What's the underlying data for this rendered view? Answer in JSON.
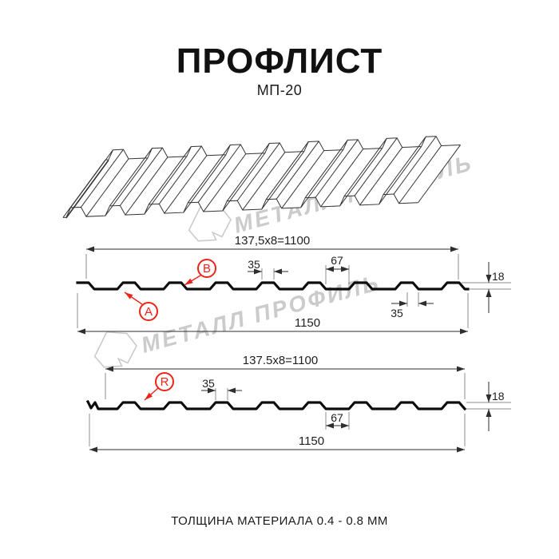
{
  "title": "ПРОФЛИСТ",
  "subtitle": "МП-20",
  "footer": "ТОЛЩИНА МАТЕРИАЛА 0.4 - 0.8 ММ",
  "watermark": {
    "text": "МЕТАЛЛ ПРОФИЛЬ",
    "color": "#cbcbcb"
  },
  "colors": {
    "accent_red": "#ee2219",
    "drawing_line": "#0d0d0d"
  },
  "section1": {
    "working_width": "137,5x8=1100",
    "total_width": "1150",
    "crest_width": "35",
    "valley_width": "67",
    "profile_height": "18",
    "bottom_width": "35",
    "label_a": "A",
    "label_b": "B"
  },
  "section2": {
    "working_width": "137.5x8=1100",
    "total_width": "1150",
    "crest_width": "35",
    "valley_width": "67",
    "profile_height": "18",
    "label_r": "R"
  }
}
